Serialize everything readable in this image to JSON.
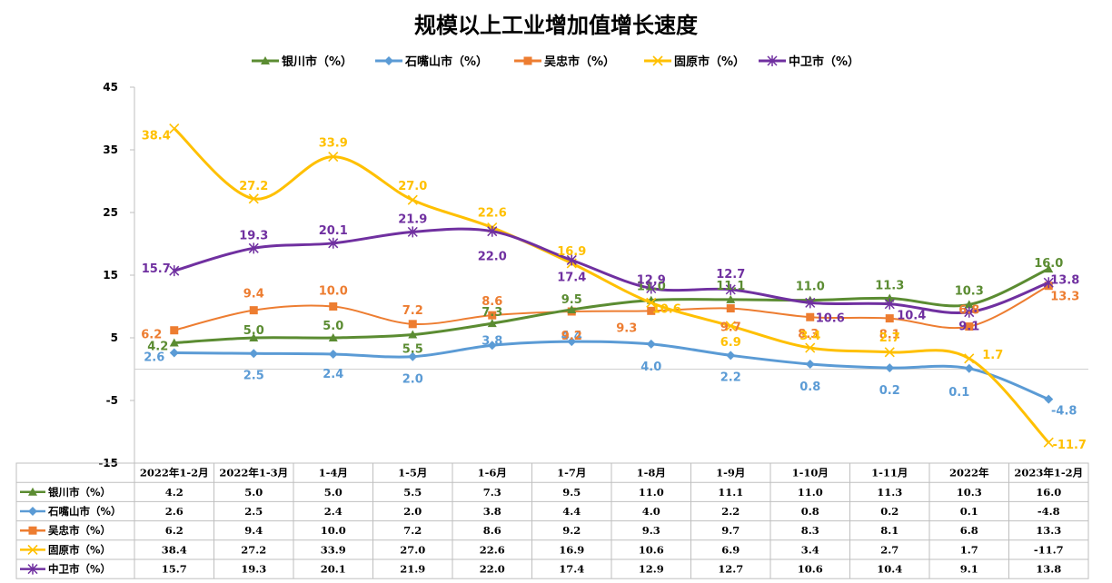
{
  "chart_data": {
    "type": "line",
    "title": "规模以上工业增加值增长速度",
    "categories": [
      "2022年1-2月",
      "2022年1-3月",
      "1-4月",
      "1-5月",
      "1-6月",
      "1-7月",
      "1-8月",
      "1-9月",
      "1-10月",
      "1-11月",
      "2022年",
      "2023年1-2月"
    ],
    "ylim": [
      -15,
      45
    ],
    "yticks": [
      -15,
      -5,
      5,
      15,
      25,
      35,
      45
    ],
    "legend_position": "top",
    "grid": false,
    "data_table": true,
    "series": [
      {
        "name": "银川市（%）",
        "color": "#5B8C32",
        "marker": "triangle",
        "values": [
          4.2,
          5.0,
          5.0,
          5.5,
          7.3,
          9.5,
          11.0,
          11.1,
          11.0,
          11.3,
          10.3,
          16.0
        ],
        "labels": [
          "4.2",
          "5.0",
          "5.0",
          "5.5",
          "7.3",
          "9.5",
          "11.0",
          "11.1",
          "11.0",
          "11.3",
          "10.3",
          "16.0"
        ]
      },
      {
        "name": "石嘴山市（%）",
        "color": "#5B9BD5",
        "marker": "diamond",
        "values": [
          2.6,
          2.5,
          2.4,
          2.0,
          3.8,
          4.4,
          4.0,
          2.2,
          0.8,
          0.2,
          0.1,
          -4.8
        ],
        "labels": [
          "2.6",
          "2.5",
          "2.4",
          "2.0",
          "3.8",
          "4.4",
          "4.0",
          "2.2",
          "0.8",
          "0.2",
          "0.1",
          "-4.8"
        ]
      },
      {
        "name": "吴忠市（%）",
        "color": "#ED7D31",
        "marker": "square",
        "values": [
          6.2,
          9.4,
          10.0,
          7.2,
          8.6,
          9.2,
          9.3,
          9.7,
          8.3,
          8.1,
          6.8,
          13.3
        ],
        "labels": [
          "6.2",
          "9.4",
          "10.0",
          "7.2",
          "8.6",
          "9.2",
          "9.3",
          "9.7",
          "8.3",
          "8.1",
          "6.8",
          "13.3"
        ]
      },
      {
        "name": "固原市（%）",
        "color": "#FFC000",
        "marker": "x",
        "values": [
          38.4,
          27.2,
          33.9,
          27.0,
          22.6,
          16.9,
          10.6,
          6.9,
          3.4,
          2.7,
          1.7,
          -11.7
        ],
        "labels": [
          "38.4",
          "27.2",
          "33.9",
          "27.0",
          "22.6",
          "16.9",
          "10.6",
          "6.9",
          "3.4",
          "2.7",
          "1.7",
          "-11.7"
        ]
      },
      {
        "name": "中卫市（%）",
        "color": "#7030A0",
        "marker": "star",
        "values": [
          15.7,
          19.3,
          20.1,
          21.9,
          22.0,
          17.4,
          12.9,
          12.7,
          10.6,
          10.4,
          9.1,
          13.8
        ],
        "labels": [
          "15.7",
          "19.3",
          "20.1",
          "21.9",
          "22.0",
          "17.4",
          "12.9",
          "12.7",
          "10.6",
          "10.4",
          "9.1",
          "13.8"
        ]
      }
    ]
  }
}
